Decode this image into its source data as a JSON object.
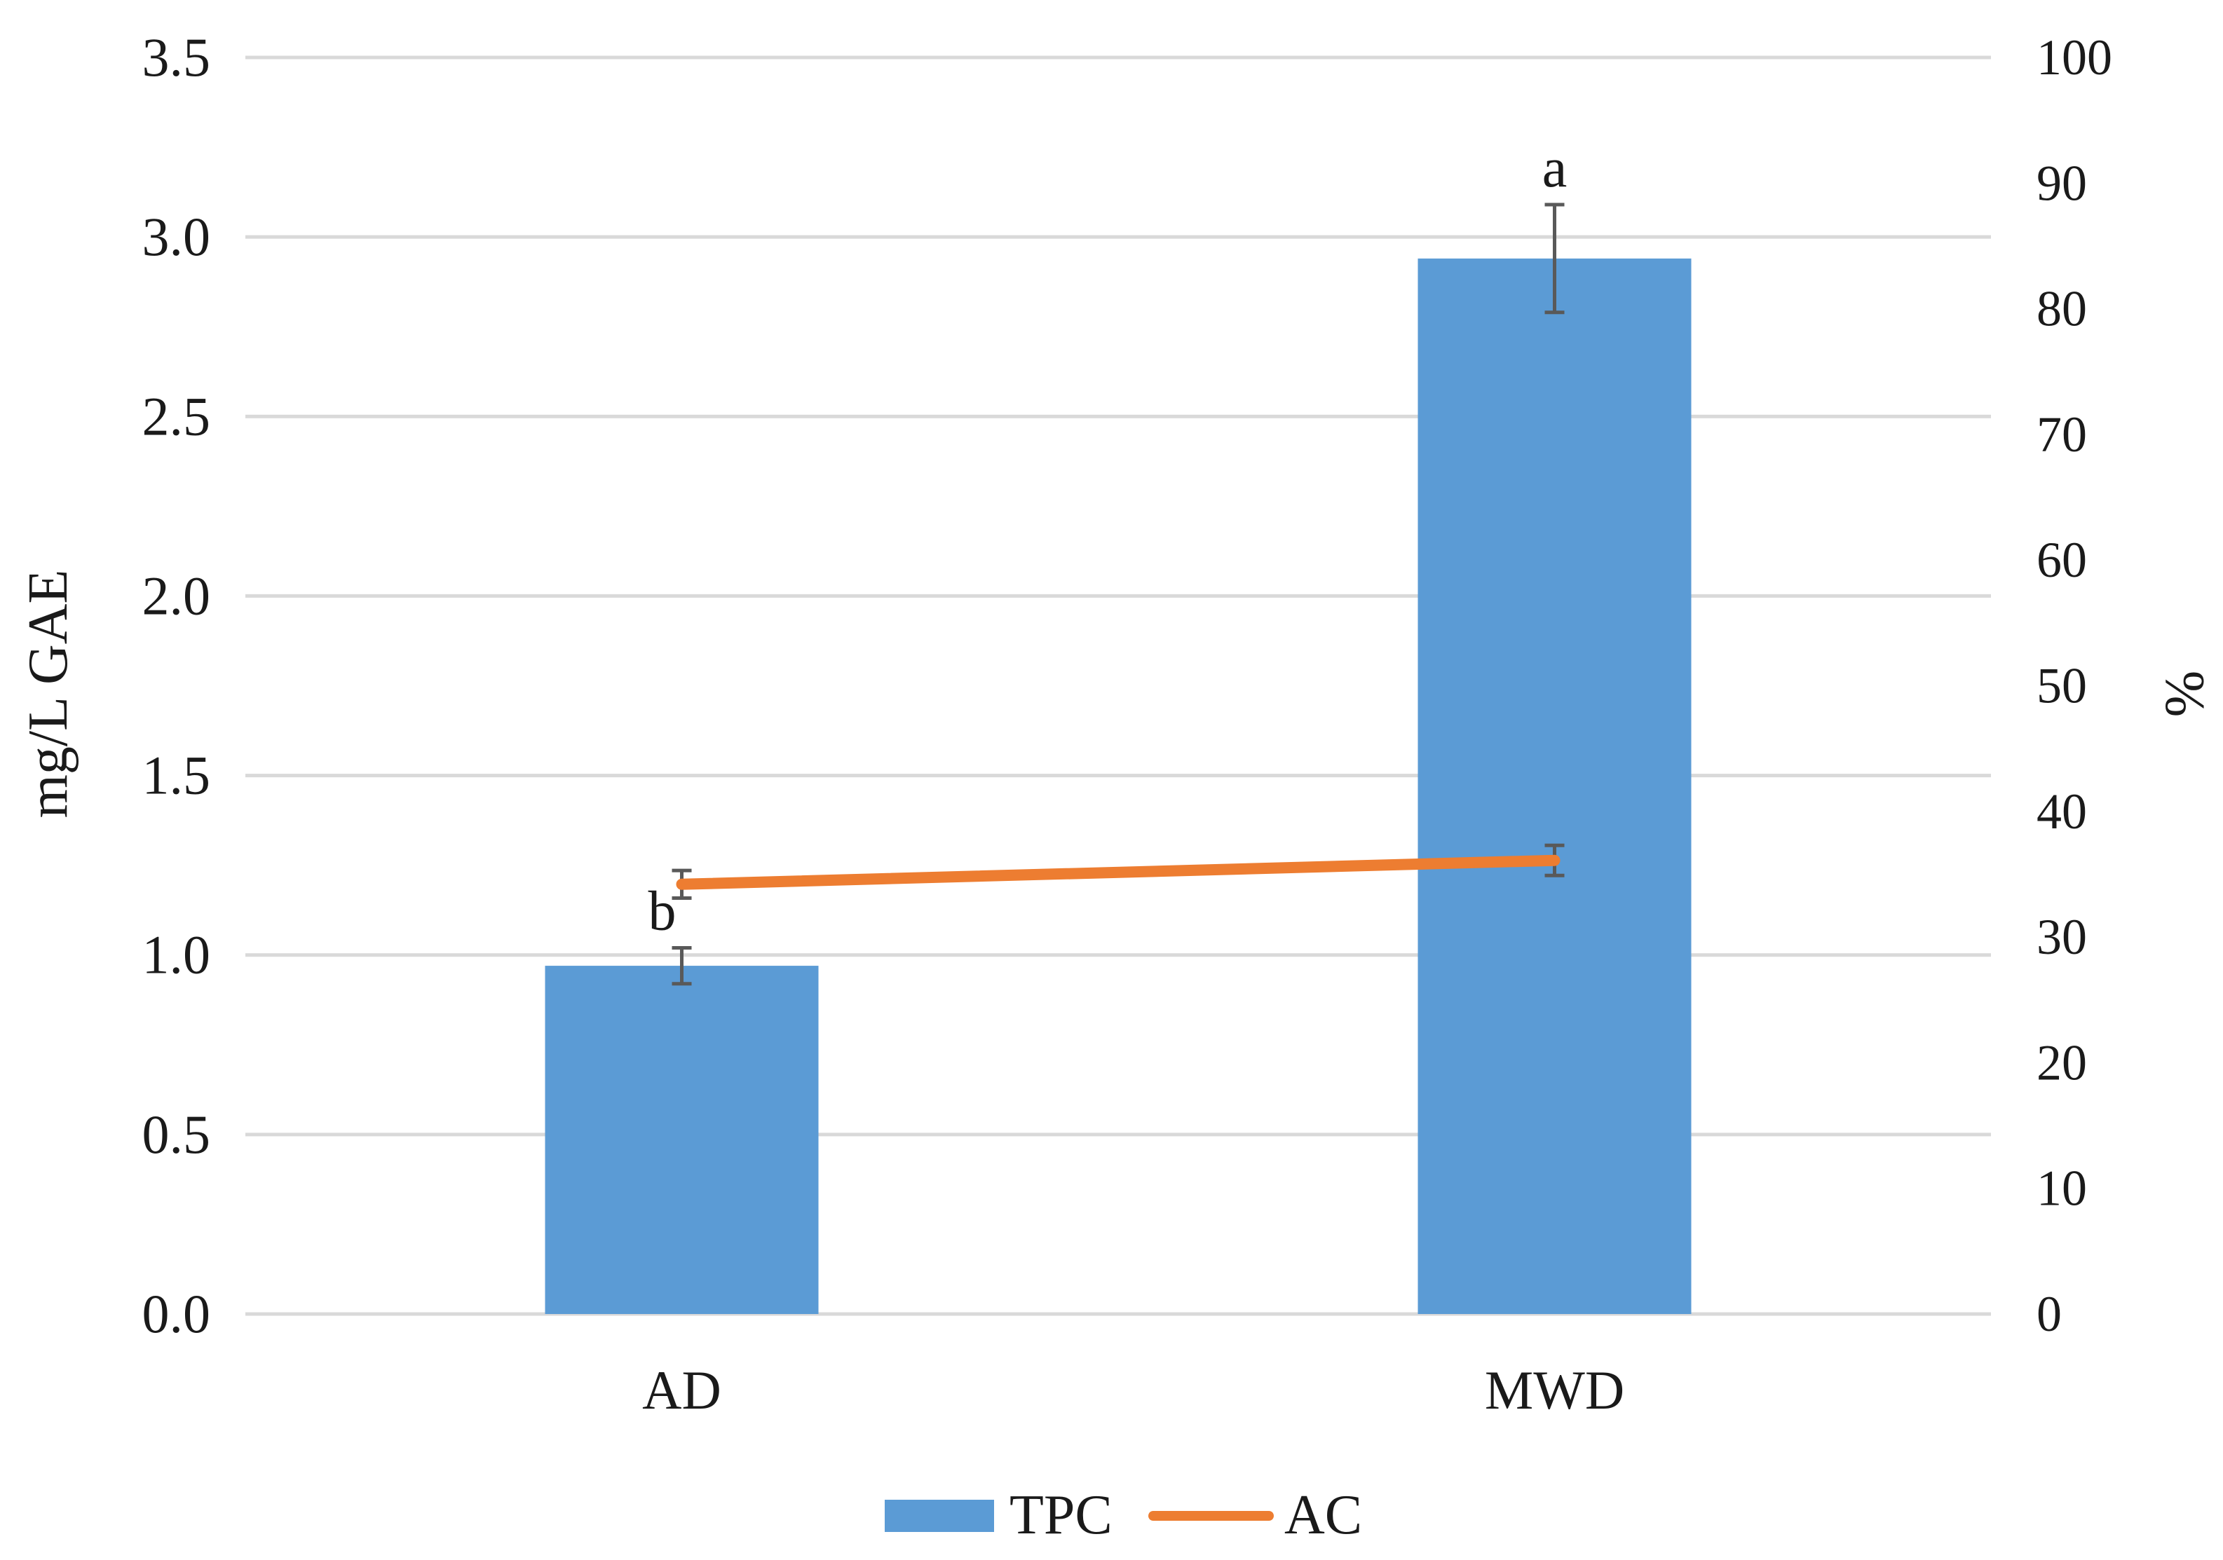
{
  "chart_data": {
    "type": "bar",
    "categories": [
      "AD",
      "MWD"
    ],
    "series": [
      {
        "name": "TPC",
        "type": "bar",
        "axis": "left",
        "values": [
          0.97,
          2.94
        ],
        "error": [
          0.05,
          0.15
        ],
        "significance": [
          "b",
          "a"
        ],
        "color": "#5b9bd5"
      },
      {
        "name": "AC",
        "type": "line",
        "axis": "right",
        "values": [
          34.2,
          36.1
        ],
        "error": [
          1.1,
          1.2
        ],
        "color": "#ed7d31"
      }
    ],
    "ylabel": "mg/L GAE",
    "ylim": [
      0,
      3.5
    ],
    "yticks": [
      "0.0",
      "0.5",
      "1.0",
      "1.5",
      "2.0",
      "2.5",
      "3.0",
      "3.5"
    ],
    "y2label": "%",
    "y2lim": [
      0,
      100
    ],
    "y2ticks": [
      "0",
      "10",
      "20",
      "30",
      "40",
      "50",
      "60",
      "70",
      "80",
      "90",
      "100"
    ],
    "grid": true,
    "legend_position": "bottom"
  }
}
